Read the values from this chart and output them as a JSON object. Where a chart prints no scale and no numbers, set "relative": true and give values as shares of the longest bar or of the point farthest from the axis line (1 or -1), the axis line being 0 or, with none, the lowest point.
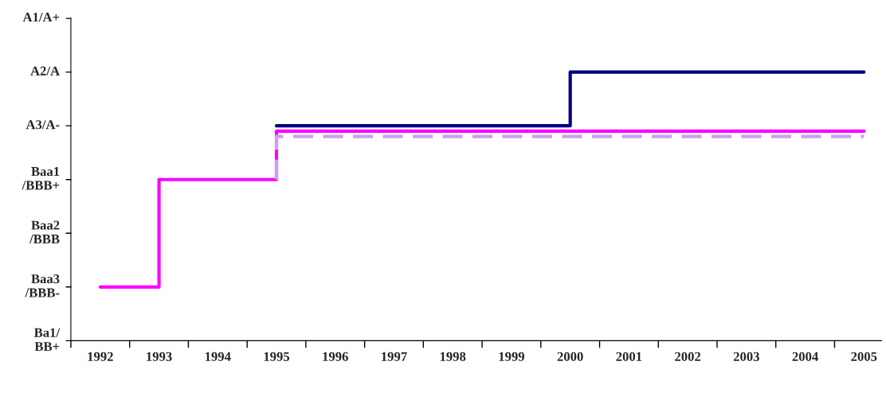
{
  "chart_data": {
    "type": "step",
    "relative": true,
    "xlim": [
      1991.5,
      2005.3
    ],
    "xticks": [
      {
        "value": 1991.5,
        "label": null
      },
      1992,
      {
        "value": 1992.5,
        "label": null
      },
      1993,
      {
        "value": 1993.5,
        "label": null
      },
      1994,
      {
        "value": 1994.5,
        "label": null
      },
      1995,
      {
        "value": 1995.5,
        "label": null
      },
      1996,
      {
        "value": 1996.5,
        "label": null
      },
      1997,
      {
        "value": 1997.5,
        "label": null
      },
      1998,
      {
        "value": 1998.5,
        "label": null
      },
      1999,
      {
        "value": 1999.5,
        "label": null
      },
      2000,
      {
        "value": 2000.5,
        "label": null
      },
      2001,
      {
        "value": 2001.5,
        "label": null
      },
      2002,
      {
        "value": 2002.5,
        "label": null
      },
      2003,
      {
        "value": 2003.5,
        "label": null
      },
      2004,
      {
        "value": 2004.5,
        "label": null
      },
      2005
    ],
    "annotations": [
      "Ba1/\nBB+",
      "Baa3\n/BBB-",
      "Baa2\n/BBB",
      "Baa1\n/BBB+",
      "A3/A-",
      "A2/A",
      "A1/A+"
    ],
    "grid": false,
    "series": [
      {
        "color": "#000080",
        "x": [
          1995,
          2000,
          2005
        ],
        "values": [
          0.8,
          1,
          1
        ]
      },
      {
        "color": "#ff00ff",
        "x": [
          1992,
          1993,
          1995,
          2005
        ],
        "values": [
          0.2,
          0.6,
          0.78,
          0.78
        ]
      },
      {
        "color": "#c8a0f0",
        "line_style": "dashed",
        "x": [
          1995,
          1995,
          2005
        ],
        "values": [
          0.6,
          0.76,
          0.76
        ]
      }
    ]
  }
}
